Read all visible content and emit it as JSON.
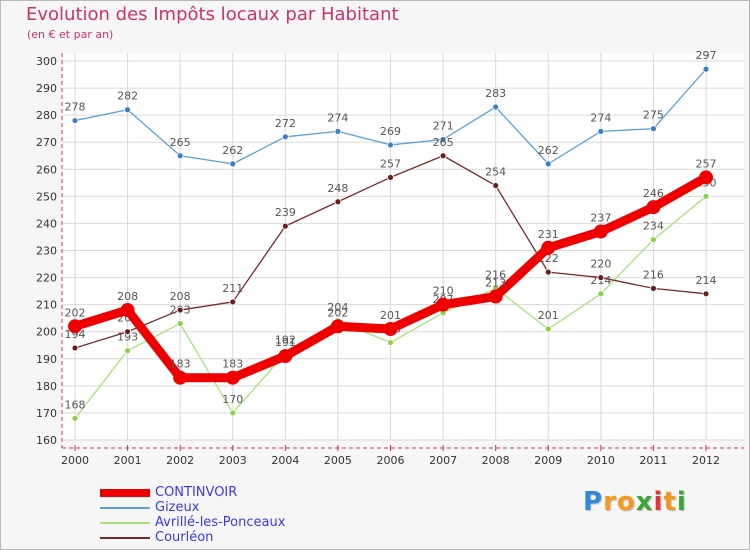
{
  "chart_data": {
    "type": "line",
    "title": "Evolution des Impôts locaux par Habitant",
    "subtitle": "(en € et par an)",
    "xlabel": "",
    "ylabel": "",
    "ylim": [
      160,
      300
    ],
    "yticks": [
      160,
      170,
      180,
      190,
      200,
      210,
      220,
      230,
      240,
      250,
      260,
      270,
      280,
      290,
      300
    ],
    "x": [
      "2000",
      "2001",
      "2002",
      "2003",
      "2004",
      "2005",
      "2006",
      "2007",
      "2008",
      "2009",
      "2010",
      "2011",
      "2012"
    ],
    "series": [
      {
        "name": "Gizeux",
        "color": "#5aa0d6",
        "marker": "#3a7fc4",
        "width": "thin",
        "values": [
          278,
          282,
          265,
          262,
          272,
          274,
          269,
          271,
          283,
          262,
          274,
          275,
          297
        ]
      },
      {
        "name": "Avrillé-les-Ponceaux",
        "color": "#a8e07a",
        "marker": "#8ad144",
        "width": "thin",
        "values": [
          168,
          193,
          203,
          170,
          192,
          204,
          196,
          207,
          216,
          201,
          214,
          234,
          250
        ]
      },
      {
        "name": "Courléon",
        "color": "#7a2a2a",
        "marker": "#6a1f1f",
        "width": "thin",
        "values": [
          194,
          200,
          208,
          211,
          239,
          248,
          257,
          265,
          254,
          222,
          220,
          216,
          214
        ]
      },
      {
        "name": "CONTINVOIR",
        "color": "#ee0000",
        "marker": "#ee0000",
        "width": "thick",
        "values": [
          202,
          208,
          183,
          183,
          191,
          202,
          201,
          210,
          213,
          231,
          237,
          246,
          257
        ]
      }
    ],
    "legend_position": "bottom-left"
  },
  "legend": [
    {
      "label": "CONTINVOIR",
      "color": "#ee0000",
      "thick": true
    },
    {
      "label": "Gizeux",
      "color": "#5aa0d6",
      "thick": false
    },
    {
      "label": "Avrillé-les-Ponceaux",
      "color": "#a8e07a",
      "thick": false
    },
    {
      "label": "Courléon",
      "color": "#7a2a2a",
      "thick": false
    }
  ],
  "logo": {
    "letters": [
      {
        "ch": "P",
        "color": "#2f88d8"
      },
      {
        "ch": "r",
        "color": "#f39a1e"
      },
      {
        "ch": "o",
        "color": "#f39a1e"
      },
      {
        "ch": "x",
        "color": "#3aa63a"
      },
      {
        "ch": "i",
        "color": "#e3342f"
      },
      {
        "ch": "t",
        "color": "#f39a1e"
      },
      {
        "ch": "i",
        "color": "#3aa63a"
      }
    ]
  }
}
